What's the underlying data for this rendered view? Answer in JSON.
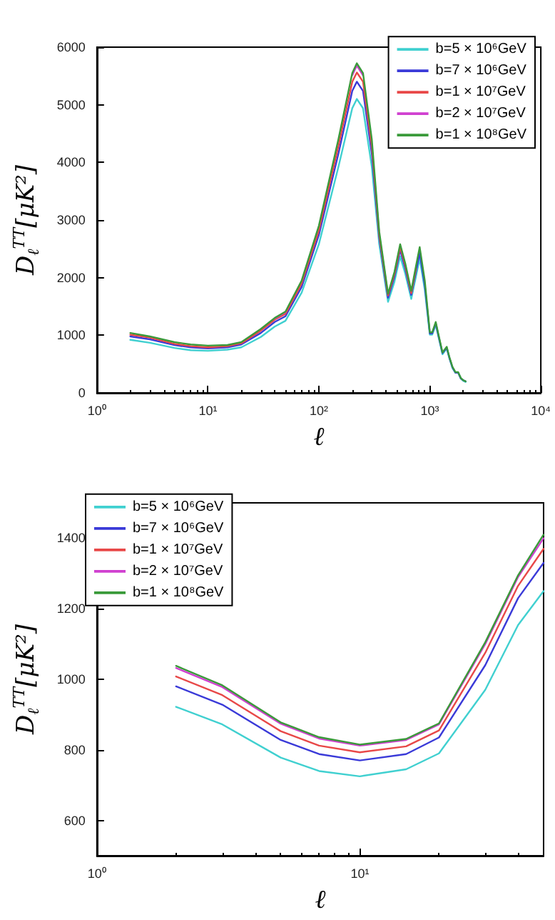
{
  "chart_data": [
    {
      "type": "line",
      "xlabel": "ℓ",
      "ylabel": "D$_{ℓ}$$^{TT}$[μK²]",
      "log": "x",
      "legend": "top right",
      "grid": false,
      "marker": "none",
      "line_style": "solid",
      "x": [
        2,
        3,
        5,
        7,
        10,
        15,
        20,
        30,
        40,
        50,
        70,
        100,
        150,
        200,
        220,
        250,
        300,
        350,
        420,
        480,
        540,
        600,
        680,
        750,
        810,
        900,
        1000,
        1050,
        1130,
        1200,
        1300,
        1420,
        1500,
        1600,
        1700,
        1800,
        1900,
        2000,
        2100
      ],
      "xlim": [
        1,
        10000
      ],
      "xticks": [
        {
          "value": 1,
          "label": "10⁰"
        },
        {
          "value": 10,
          "label": "10¹"
        },
        {
          "value": 100,
          "label": "10²"
        },
        {
          "value": 1000,
          "label": "10³"
        },
        {
          "value": 10000,
          "label": "10⁴"
        }
      ],
      "ylim": [
        0,
        6000
      ],
      "yticks": [
        0,
        1000,
        2000,
        3000,
        4000,
        5000,
        6000
      ],
      "series": [
        {
          "name": "b=5 × 10⁶GeV",
          "color": "#40d0d0",
          "values": [
            920,
            870,
            780,
            740,
            730,
            750,
            790,
            970,
            1150,
            1250,
            1740,
            2580,
            3920,
            4940,
            5100,
            4940,
            3920,
            2580,
            1580,
            1930,
            2370,
            2070,
            1630,
            2020,
            2330,
            1790,
            1010,
            1010,
            1180,
            960,
            670,
            770,
            600,
            430,
            350,
            350,
            250,
            210,
            190
          ]
        },
        {
          "name": "b=7 × 10⁶GeV",
          "color": "#3a3ad8",
          "values": [
            980,
            930,
            830,
            790,
            770,
            790,
            840,
            1040,
            1230,
            1330,
            1840,
            2740,
            4150,
            5240,
            5400,
            5240,
            4150,
            2690,
            1650,
            2020,
            2480,
            2160,
            1700,
            2110,
            2430,
            1870,
            1030,
            1030,
            1210,
            980,
            690,
            780,
            610,
            440,
            350,
            350,
            250,
            220,
            200
          ]
        },
        {
          "name": "b=1 × 10⁷GeV",
          "color": "#e84848",
          "values": [
            1010,
            960,
            850,
            810,
            790,
            810,
            860,
            1080,
            1270,
            1370,
            1900,
            2820,
            4280,
            5400,
            5560,
            5400,
            4280,
            2740,
            1690,
            2060,
            2530,
            2210,
            1730,
            2160,
            null,
            null,
            null,
            null,
            null,
            null,
            null,
            null,
            null,
            null,
            null,
            null,
            null,
            null,
            null
          ]
        },
        {
          "name": "b=2 × 10⁷GeV",
          "color": "#d040d0",
          "values": [
            null,
            null,
            null,
            null,
            null,
            null,
            null,
            null,
            1290,
            1400,
            null,
            null,
            null,
            5510,
            5680,
            5510,
            null,
            null,
            null,
            null,
            null,
            null,
            null,
            null,
            null,
            null,
            null,
            null,
            null,
            null,
            null,
            null,
            null,
            null,
            null,
            null,
            null,
            null,
            null
          ]
        },
        {
          "name": "b=1 × 10⁸GeV",
          "color": "#3a9a3a",
          "values": [
            1040,
            980,
            880,
            840,
            820,
            830,
            880,
            1110,
            1300,
            1410,
            1950,
            2900,
            4400,
            5550,
            5720,
            5550,
            4400,
            2800,
            1720,
            2100,
            2580,
            2250,
            1770,
            2200,
            2530,
            1950,
            1050,
            1050,
            1230,
            1000,
            700,
            800,
            620,
            450,
            360,
            360,
            260,
            220,
            200
          ]
        }
      ]
    },
    {
      "type": "line",
      "xlabel": "ℓ",
      "ylabel": "D$_{ℓ}$$^{TT}$[μK²]",
      "log": "x",
      "legend": "top left",
      "grid": false,
      "marker": "none",
      "line_style": "solid",
      "x": [
        2,
        3,
        5,
        7,
        10,
        15,
        20,
        30,
        40,
        50
      ],
      "xlim": [
        1,
        50
      ],
      "xticks": [
        {
          "value": 1,
          "label": "10⁰"
        },
        {
          "value": 10,
          "label": "10¹"
        }
      ],
      "ylim": [
        500,
        1500
      ],
      "yticks": [
        600,
        800,
        1000,
        1200,
        1400
      ],
      "series": [
        {
          "name": "b=5 × 10⁶GeV",
          "color": "#40d0d0",
          "values": [
            922,
            872,
            778,
            740,
            725,
            745,
            790,
            970,
            1154,
            1250
          ]
        },
        {
          "name": "b=7 × 10⁶GeV",
          "color": "#3a3ad8",
          "values": [
            980,
            928,
            828,
            788,
            770,
            788,
            835,
            1040,
            1230,
            1330
          ]
        },
        {
          "name": "b=1 × 10⁷GeV",
          "color": "#e84848",
          "values": [
            1008,
            955,
            853,
            812,
            793,
            810,
            855,
            1075,
            1265,
            1370
          ]
        },
        {
          "name": "b=2 × 10⁷GeV",
          "color": "#d040d0",
          "values": [
            1032,
            978,
            874,
            832,
            812,
            828,
            872,
            1100,
            1290,
            1400
          ]
        },
        {
          "name": "b=1 × 10⁸GeV",
          "color": "#3a9a3a",
          "values": [
            1038,
            983,
            878,
            836,
            815,
            831,
            875,
            1105,
            1295,
            1410
          ]
        }
      ]
    }
  ]
}
